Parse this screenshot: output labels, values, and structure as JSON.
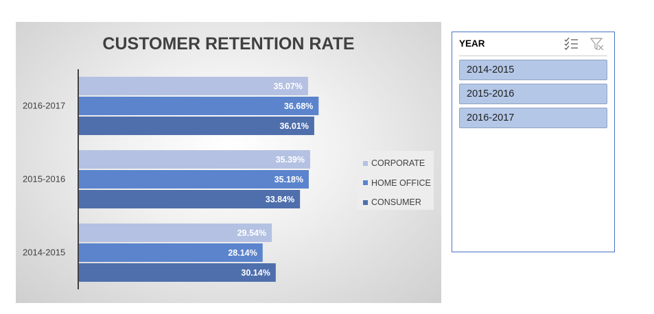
{
  "chart_data": {
    "type": "bar",
    "orientation": "horizontal",
    "title": "CUSTOMER RETENTION RATE",
    "categories": [
      "2016-2017",
      "2015-2016",
      "2014-2015"
    ],
    "series": [
      {
        "name": "CORPORATE",
        "color": "#b4c1e2",
        "values": [
          35.07,
          35.39,
          29.54
        ],
        "labels": [
          "35.07%",
          "35.39%",
          "29.54%"
        ]
      },
      {
        "name": "HOME OFFICE",
        "color": "#5b84cd",
        "values": [
          36.68,
          35.18,
          28.14
        ],
        "labels": [
          "36.68%",
          "35.18%",
          "28.14%"
        ]
      },
      {
        "name": "CONSUMER",
        "color": "#4f6fac",
        "values": [
          36.01,
          33.84,
          30.14
        ],
        "labels": [
          "36.01%",
          "33.84%",
          "30.14%"
        ]
      }
    ],
    "xlim": [
      0,
      100
    ],
    "grid": false,
    "legend_position": "right"
  },
  "slicer": {
    "title": "YEAR",
    "multiselect_icon": "multi-select-icon",
    "clear_filter_icon": "clear-filter-icon",
    "items": [
      "2014-2015",
      "2015-2016",
      "2016-2017"
    ],
    "item_color": "#b4c7e7",
    "border_color": "#4472c4"
  }
}
